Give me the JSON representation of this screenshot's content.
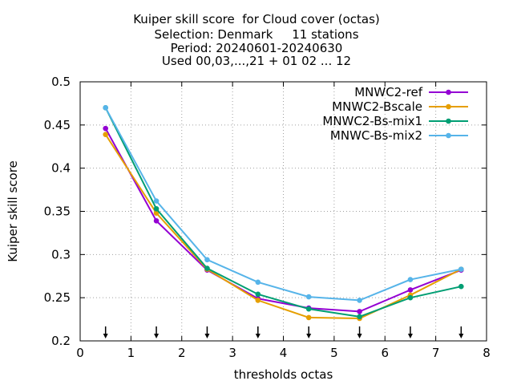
{
  "chart_data": {
    "type": "line",
    "title_lines": [
      "Kuiper skill score  for Cloud cover (octas)",
      "Selection: Denmark     11 stations",
      "Period: 20240601-20240630",
      "Used 00,03,...,21 + 01 02 ... 12"
    ],
    "xlabel": "thresholds octas",
    "ylabel": "Kuiper skill score",
    "xlim": [
      0,
      8
    ],
    "ylim": [
      0.2,
      0.5
    ],
    "xticks": [
      0,
      1,
      2,
      3,
      4,
      5,
      6,
      7,
      8
    ],
    "xtick_labels": [
      "0",
      "1",
      "2",
      "3",
      "4",
      "5",
      "6",
      "7",
      "8"
    ],
    "yticks": [
      0.2,
      0.25,
      0.3,
      0.35,
      0.4,
      0.45,
      0.5
    ],
    "ytick_labels": [
      "0.2",
      "0.25",
      "0.3",
      "0.35",
      "0.4",
      "0.45",
      "0.5"
    ],
    "grid": true,
    "legend_position": "top-right",
    "x": [
      0.5,
      1.5,
      2.5,
      3.5,
      4.5,
      5.5,
      6.5,
      7.5
    ],
    "arrow_markers_x": [
      0.5,
      1.5,
      2.5,
      3.5,
      4.5,
      5.5,
      6.5,
      7.5
    ],
    "series": [
      {
        "name": "MNWC2-ref",
        "color": "#9400d3",
        "values": [
          0.446,
          0.339,
          0.282,
          0.249,
          0.238,
          0.234,
          0.259,
          0.282
        ]
      },
      {
        "name": "MNWC2-Bscale",
        "color": "#e69f00",
        "values": [
          0.439,
          0.348,
          0.283,
          0.247,
          0.227,
          0.226,
          0.253,
          0.283
        ]
      },
      {
        "name": "MNWC2-Bs-mix1",
        "color": "#009e73",
        "values": [
          0.47,
          0.353,
          0.284,
          0.254,
          0.237,
          0.228,
          0.25,
          0.263
        ]
      },
      {
        "name": "MNWC-Bs-mix2",
        "color": "#56b4e9",
        "values": [
          0.47,
          0.362,
          0.294,
          0.268,
          0.251,
          0.247,
          0.271,
          0.283
        ]
      }
    ]
  }
}
